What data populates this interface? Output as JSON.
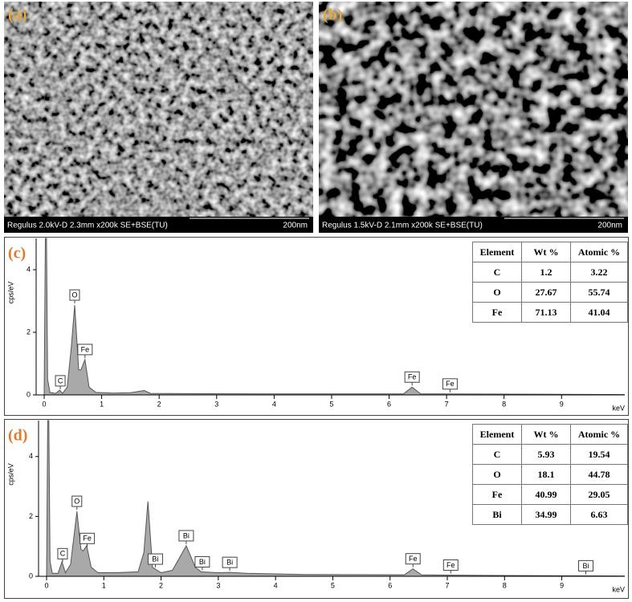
{
  "images": [
    {
      "label": "(a)",
      "caption": "Regulus 2.0kV-D 2.3mm x200k SE+BSE(TU)",
      "scale": "200nm"
    },
    {
      "label": "(b)",
      "caption": "Regulus 1.5kV-D 2.1mm x200k SE+BSE(TU)",
      "scale": "200nm"
    }
  ],
  "chart_data": [
    {
      "type": "area",
      "label": "(c)",
      "ylabel": "cps/eV",
      "xlabel": "keV",
      "color": "#a9a9a9",
      "xlim": [
        -0.14,
        10.1
      ],
      "ylim": [
        0,
        5
      ],
      "xticks": [
        0,
        1,
        2,
        3,
        4,
        5,
        6,
        7,
        8,
        9
      ],
      "yticks": [
        0,
        2,
        4
      ],
      "x": [
        0,
        0.02,
        0.04,
        0.06,
        0.1,
        0.2,
        0.27,
        0.32,
        0.4,
        0.47,
        0.53,
        0.6,
        0.64,
        0.71,
        0.78,
        0.9,
        1.2,
        1.5,
        1.74,
        1.85,
        2.5,
        4,
        6.25,
        6.4,
        6.55,
        7,
        9,
        10.1
      ],
      "values": [
        0,
        5,
        5,
        0.5,
        0.08,
        0.05,
        0.15,
        0.05,
        0.25,
        1.5,
        2.87,
        0.8,
        0.8,
        1.13,
        0.25,
        0.08,
        0.06,
        0.07,
        0.14,
        0.05,
        0.04,
        0.03,
        0.03,
        0.25,
        0.03,
        0.03,
        0.02,
        0.01
      ],
      "annotations": [
        {
          "text": "C",
          "x": 0.28
        },
        {
          "text": "O",
          "x": 0.53
        },
        {
          "text": "Fe",
          "x": 0.71
        },
        {
          "text": "Fe",
          "x": 6.4
        },
        {
          "text": "Fe",
          "x": 7.06
        }
      ],
      "table": {
        "header": [
          "Element",
          "Wt %",
          "Atomic %"
        ],
        "rows": [
          [
            "C",
            1.2,
            3.22
          ],
          [
            "O",
            27.67,
            55.74
          ],
          [
            "Fe",
            71.13,
            41.04
          ]
        ]
      }
    },
    {
      "type": "area",
      "label": "(d)",
      "ylabel": "cps/eV",
      "xlabel": "keV",
      "color": "#a9a9a9",
      "xlim": [
        -0.14,
        10.1
      ],
      "ylim": [
        0,
        5.2
      ],
      "xticks": [
        0,
        1,
        2,
        3,
        4,
        5,
        6,
        7,
        8,
        9
      ],
      "yticks": [
        0,
        2,
        4
      ],
      "x": [
        0,
        0.02,
        0.04,
        0.06,
        0.1,
        0.2,
        0.27,
        0.33,
        0.42,
        0.53,
        0.6,
        0.64,
        0.7,
        0.78,
        0.9,
        1.2,
        1.6,
        1.7,
        1.77,
        1.85,
        2.0,
        2.2,
        2.44,
        2.6,
        2.7,
        3.0,
        3.2,
        3.5,
        4.5,
        6.25,
        6.4,
        6.55,
        7,
        9,
        10.1
      ],
      "values": [
        0,
        5.2,
        5.2,
        0.5,
        0.1,
        0.1,
        0.48,
        0.12,
        0.4,
        2.17,
        0.9,
        0.85,
        1.02,
        0.3,
        0.12,
        0.12,
        0.15,
        0.8,
        2.5,
        0.3,
        0.12,
        0.2,
        1.02,
        0.3,
        0.15,
        0.12,
        0.13,
        0.1,
        0.06,
        0.05,
        0.25,
        0.05,
        0.04,
        0.02,
        0.01
      ],
      "annotations": [
        {
          "text": "C",
          "x": 0.28
        },
        {
          "text": "O",
          "x": 0.53
        },
        {
          "text": "Fe",
          "x": 0.71
        },
        {
          "text": "Bi",
          "x": 1.9
        },
        {
          "text": "Bi",
          "x": 2.44
        },
        {
          "text": "Bi",
          "x": 2.72
        },
        {
          "text": "Bi",
          "x": 3.2
        },
        {
          "text": "Fe",
          "x": 6.4
        },
        {
          "text": "Fe",
          "x": 7.06
        },
        {
          "text": "Bi",
          "x": 9.42
        }
      ],
      "table": {
        "header": [
          "Element",
          "Wt %",
          "Atomic %"
        ],
        "rows": [
          [
            "C",
            5.93,
            19.54
          ],
          [
            "O",
            18.1,
            44.78
          ],
          [
            "Fe",
            40.99,
            29.05
          ],
          [
            "Bi",
            34.99,
            6.63
          ]
        ]
      }
    }
  ]
}
